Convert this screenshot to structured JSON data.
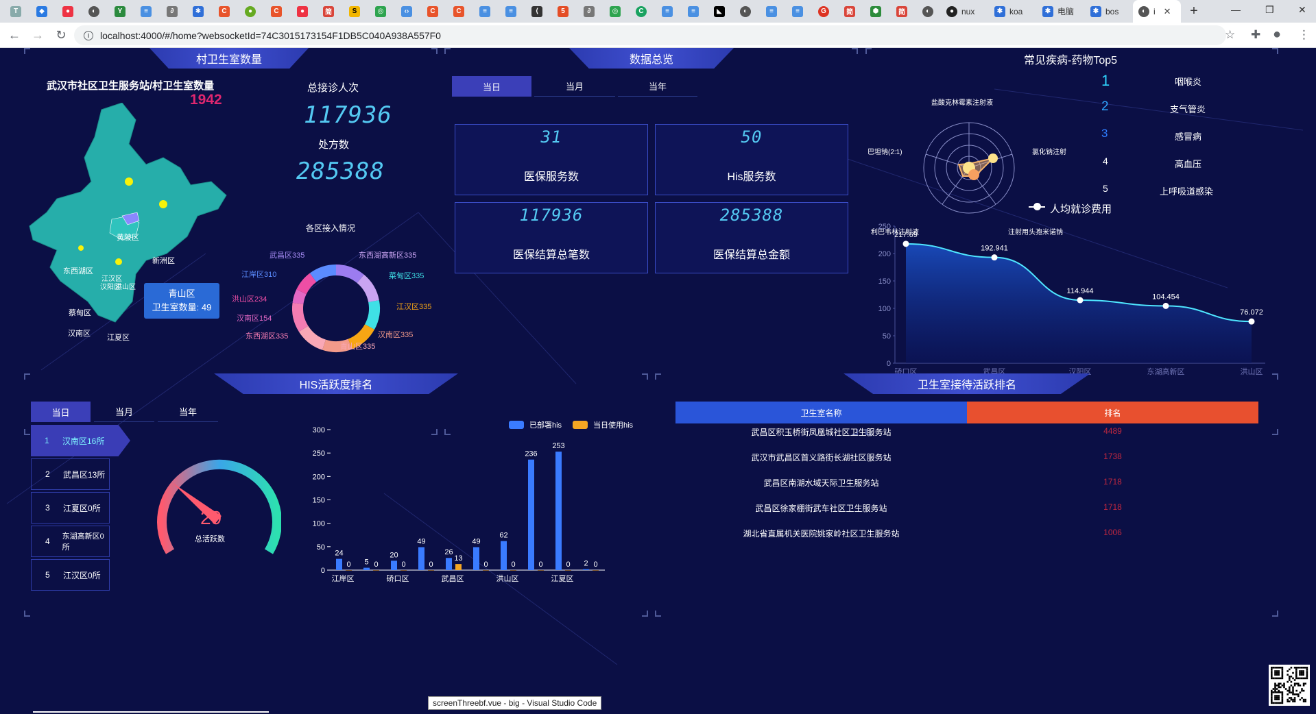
{
  "browser": {
    "tabs_visible": [
      "nux",
      "koa",
      "电脑",
      "bos",
      "i"
    ],
    "url": "localhost:4000/#/home?websocketId=74C3015173154F1DB5C040A938A557F0"
  },
  "panels": {
    "village": {
      "title": "村卫生室数量",
      "heading": "武汉市社区卫生服务站/村卫生室数量",
      "count": "1942",
      "total_visits_label": "总接诊人次",
      "total_visits": "117936",
      "prescriptions_label": "处方数",
      "prescriptions": "285388",
      "map_labels": [
        "黄陂区",
        "新洲区",
        "东西湖区",
        "蔡甸区",
        "汉南区",
        "江夏区",
        "洪山区",
        "江汉区",
        "汉阳区"
      ],
      "tooltip": {
        "district": "青山区",
        "text": "卫生室数量: 49"
      },
      "ring_title": "各区接入情况",
      "ring_labels": [
        "武昌区335",
        "东西湖高新区335",
        "江岸区310",
        "菜甸区335",
        "洪山区234",
        "江汉区335",
        "汉南区154",
        "汉南区335",
        "东西湖区335",
        "青山区335"
      ]
    },
    "overview": {
      "title": "数据总览",
      "tabs": [
        "当日",
        "当月",
        "当年"
      ],
      "cards": [
        {
          "value": "31",
          "label": "医保服务数"
        },
        {
          "value": "50",
          "label": "His服务数"
        },
        {
          "value": "117936",
          "label": "医保结算总笔数"
        },
        {
          "value": "285388",
          "label": "医保结算总金额"
        }
      ]
    },
    "diseases": {
      "title": "常见疾病-药物Top5",
      "radar_labels": [
        "盐酸克林霉素注射液",
        "氯化钠注射",
        "巴坦钠(2:1)",
        "注射用头孢米诺钠",
        "利巴韦林注射液"
      ],
      "top5": [
        {
          "rank": "1",
          "name": "咽喉炎"
        },
        {
          "rank": "2",
          "name": "支气管炎"
        },
        {
          "rank": "3",
          "name": "感冒病"
        },
        {
          "rank": "4",
          "name": "高血压"
        },
        {
          "rank": "5",
          "name": "上呼吸道感染"
        }
      ],
      "legend": "人均就诊费用"
    },
    "his": {
      "title": "HIS活跃度排名",
      "tabs": [
        "当日",
        "当月",
        "当年"
      ],
      "ranking": [
        {
          "rank": "1",
          "name": "汉南区16所"
        },
        {
          "rank": "2",
          "name": "武昌区13所"
        },
        {
          "rank": "3",
          "name": "江夏区0所"
        },
        {
          "rank": "4",
          "name": "东湖高新区0所"
        },
        {
          "rank": "5",
          "name": "江汉区0所"
        }
      ],
      "gauge_value": "29",
      "gauge_label": "总活跃数",
      "legend_a": "已部署his",
      "legend_b": "当日使用his"
    },
    "reception": {
      "title": "卫生室接待活跃排名",
      "col_name": "卫生室名称",
      "col_rank": "排名",
      "rows": [
        {
          "name": "武昌区积玉桥街凤凰城社区卫生服务站",
          "rank": "4489"
        },
        {
          "name": "武汉市武昌区首义路街长湖社区服务站",
          "rank": "1738"
        },
        {
          "name": "武昌区南湖水域天际卫生服务站",
          "rank": "1718"
        },
        {
          "name": "武昌区徐家棚街武车社区卫生服务站",
          "rank": "1718"
        },
        {
          "name": "湖北省直属机关医院姚家岭社区卫生服务站",
          "rank": "1006"
        }
      ]
    }
  },
  "taskbar_tooltip": "screenThreebf.vue - big - Visual Studio Code",
  "chart_data": [
    {
      "type": "area",
      "title": "",
      "series": [
        {
          "name": "人均就诊费用",
          "values": [
            217.69,
            192.941,
            114.944,
            104.454,
            76.072
          ]
        }
      ],
      "categories": [
        "硚口区",
        "武昌区",
        "汉阳区",
        "东湖高新区",
        "洪山区"
      ],
      "ylim": [
        0,
        250
      ],
      "yticks": [
        "250",
        "200",
        "150",
        "100",
        "50",
        "0"
      ]
    },
    {
      "type": "bar",
      "categories": [
        "江岸区",
        "",
        "硚口区",
        "",
        "武昌区",
        "",
        "洪山区",
        "",
        "江夏区",
        ""
      ],
      "series": [
        {
          "name": "已部署his",
          "values": [
            24,
            5,
            20,
            49,
            26,
            49,
            62,
            236,
            253,
            2
          ],
          "color": "#3a7bff"
        },
        {
          "name": "当日使用his",
          "values": [
            0,
            0,
            0,
            0,
            13,
            0,
            0,
            0,
            0,
            0
          ],
          "color": "#f5a623"
        }
      ],
      "ylim": [
        0,
        300
      ],
      "yticks": [
        "300",
        "250",
        "200",
        "150",
        "100",
        "50",
        "0"
      ]
    },
    {
      "type": "pie",
      "title": "各区接入情况",
      "categories": [
        "武昌区",
        "东西湖高新区",
        "菜甸区",
        "江汉区",
        "汉南区",
        "青山区",
        "东西湖区",
        "汉南区",
        "洪山区",
        "江岸区"
      ],
      "values": [
        335,
        335,
        335,
        335,
        335,
        335,
        335,
        154,
        234,
        310
      ]
    }
  ]
}
